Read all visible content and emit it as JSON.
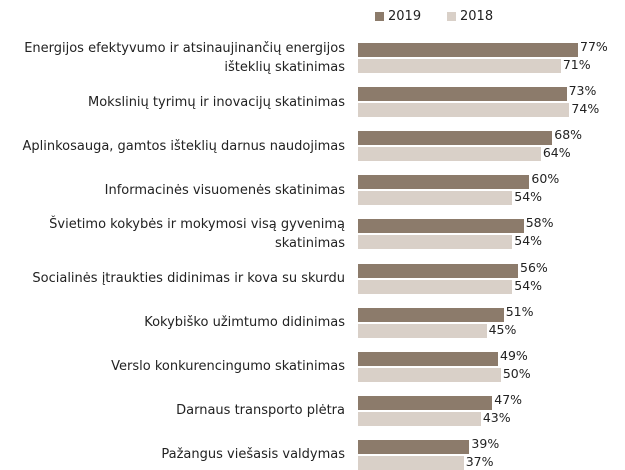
{
  "chart_data": {
    "type": "bar",
    "orientation": "horizontal",
    "categories": [
      "Energijos efektyvumo ir atsinaujinančių energijos išteklių skatinimas",
      "Mokslinių tyrimų ir inovacijų skatinimas",
      "Aplinkosauga, gamtos išteklių darnus naudojimas",
      "Informacinės visuomenės skatinimas",
      "Švietimo kokybės ir mokymosi visą gyvenimą skatinimas",
      "Socialinės įtraukties didinimas ir kova su skurdu",
      "Kokybiško užimtumo didinimas",
      "Verslo konkurencingumo skatinimas",
      "Darnaus transporto plėtra",
      "Pažangus viešasis valdymas"
    ],
    "series": [
      {
        "name": "2019",
        "color": "#8c7b6b",
        "values": [
          77,
          73,
          68,
          60,
          58,
          56,
          51,
          49,
          47,
          39
        ],
        "value_labels": [
          "77%",
          "73%",
          "68%",
          "60%",
          "58%",
          "56%",
          "51%",
          "49%",
          "47%",
          "39%"
        ]
      },
      {
        "name": "2018",
        "color": "#d9d0c8",
        "values": [
          71,
          74,
          64,
          54,
          54,
          54,
          45,
          50,
          43,
          37
        ],
        "value_labels": [
          "71%",
          "74%",
          "64%",
          "54%",
          "54%",
          "54%",
          "45%",
          "50%",
          "43%",
          "37%"
        ]
      }
    ],
    "legend": "top"
  }
}
